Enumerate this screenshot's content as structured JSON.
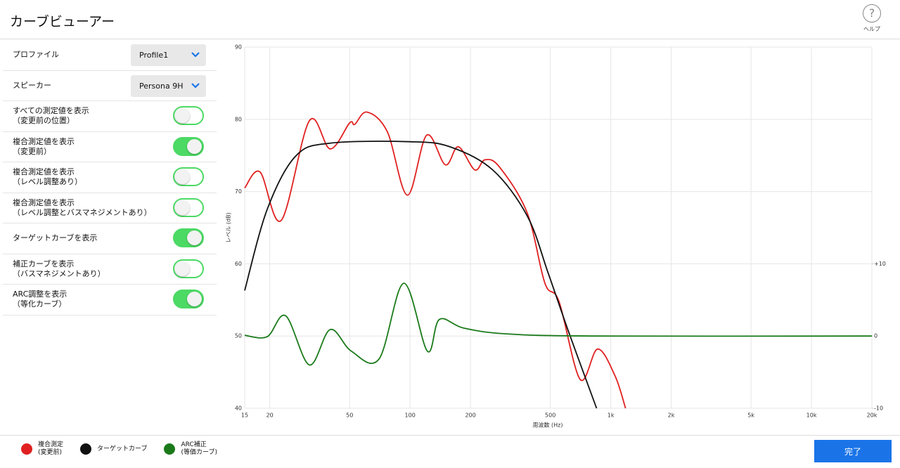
{
  "header": {
    "title": "カーブビューアー",
    "help": {
      "icon": "?",
      "label": "ヘルプ"
    }
  },
  "settings": {
    "dropdowns": [
      {
        "label": "プロファイル",
        "value": "Profile1"
      },
      {
        "label": "スピーカー",
        "value": "Persona 9H"
      }
    ],
    "toggles": [
      {
        "label": "すべての測定値を表示\n（変更前の位置）",
        "on": false
      },
      {
        "label": "複合測定値を表示\n（変更前）",
        "on": true
      },
      {
        "label": "複合測定値を表示\n（レベル調整あり）",
        "on": false
      },
      {
        "label": "複合測定値を表示\n（レベル調整とバスマネジメントあり）",
        "on": false
      },
      {
        "label": "ターゲットカーブを表示",
        "on": true
      },
      {
        "label": "補正カーブを表示\n（バスマネジメントあり）",
        "on": false
      },
      {
        "label": "ARC調整を表示\n（等化カーブ）",
        "on": true
      }
    ]
  },
  "chart_data": {
    "type": "line",
    "xlabel": "周波数 (Hz)",
    "ylabel": "レベル (dB)",
    "xscale": "log",
    "grid": true,
    "xlim": [
      15,
      20000
    ],
    "xticks": [
      15,
      20,
      50,
      100,
      200,
      500,
      {
        "value": 1000,
        "label": "1k"
      },
      {
        "value": 2000,
        "label": "2k"
      },
      {
        "value": 5000,
        "label": "5k"
      },
      {
        "value": 10000,
        "label": "10k"
      },
      {
        "value": 20000,
        "label": "20k"
      }
    ],
    "ylim": [
      40,
      90
    ],
    "yticks": [
      40,
      50,
      60,
      70,
      80,
      90
    ],
    "y2lim": [
      -10,
      40
    ],
    "y2ticks": [
      -10,
      0,
      {
        "value": 10,
        "label": "+10"
      }
    ],
    "series": [
      {
        "name": "複合測定\n(変更前)",
        "color": "#e02020",
        "x": [
          15,
          17.9,
          22.8,
          31.5,
          40,
          50,
          53,
          61,
          77,
          97,
          121,
          150,
          174,
          210,
          236,
          279,
          384,
          470,
          552,
          704,
          860,
          1050,
          1185
        ],
        "values": [
          70.5,
          72.7,
          66,
          79.8,
          75.9,
          79.5,
          79.3,
          81,
          78.3,
          69.5,
          77.8,
          73.7,
          76.2,
          73,
          74.4,
          73.4,
          67,
          57.3,
          54.8,
          44,
          48.2,
          44.5,
          40
        ]
      },
      {
        "name": "ターゲットカーブ",
        "color": "#111111",
        "x": [
          15,
          19.4,
          26.9,
          40,
          100,
          158,
          258,
          384,
          488,
          620,
          850
        ],
        "values": [
          56.3,
          67.5,
          74.9,
          76.7,
          76.9,
          76.2,
          73,
          66.6,
          58.7,
          50.4,
          40
        ]
      },
      {
        "name": "ARC補正\n(等価カーブ)",
        "color": "#1a7a1a",
        "axis": "y2",
        "x": [
          15,
          19.4,
          24,
          31.5,
          40,
          51,
          70,
          93,
          122,
          140,
          185,
          303,
          850,
          20000
        ],
        "values": [
          0.1,
          -0.1,
          2.8,
          -4,
          0.9,
          -2.1,
          -3.2,
          7.3,
          -2.1,
          2.3,
          1.1,
          0.3,
          0,
          0
        ]
      }
    ]
  },
  "button": {
    "label": "完了"
  }
}
